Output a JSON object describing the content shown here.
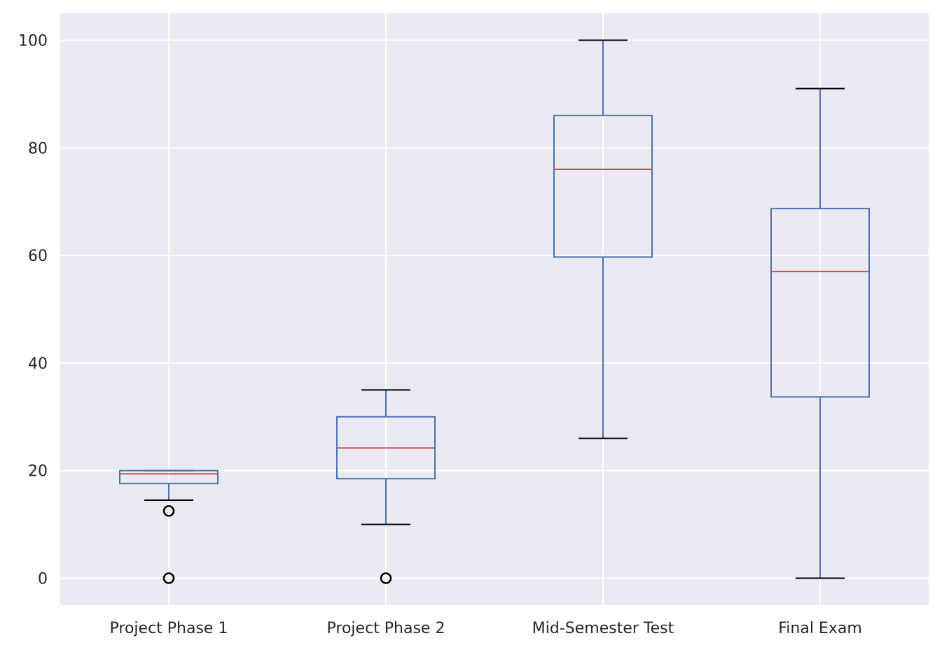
{
  "chart_data": {
    "type": "boxplot",
    "title": "",
    "xlabel": "",
    "ylabel": "",
    "categories": [
      "Project Phase 1",
      "Project Phase 2",
      "Mid-Semester Test",
      "Final Exam"
    ],
    "ylim": [
      -5,
      105
    ],
    "yticks": [
      0,
      20,
      40,
      60,
      80,
      100
    ],
    "grid": true,
    "boxes": [
      {
        "name": "Project Phase 1",
        "whislo": 14.5,
        "q1": 17.6,
        "median": 19.4,
        "q3": 20,
        "whishi": 20,
        "fliers": [
          12.5,
          0
        ]
      },
      {
        "name": "Project Phase 2",
        "whislo": 10,
        "q1": 18.5,
        "median": 24.2,
        "q3": 30,
        "whishi": 35,
        "fliers": [
          0
        ]
      },
      {
        "name": "Mid-Semester Test",
        "whislo": 26,
        "q1": 59.7,
        "median": 76,
        "q3": 86,
        "whishi": 100,
        "fliers": []
      },
      {
        "name": "Final Exam",
        "whislo": 0,
        "q1": 33.7,
        "median": 57,
        "q3": 68.7,
        "whishi": 91,
        "fliers": []
      }
    ],
    "colors": {
      "box": "#4c72b0",
      "median": "#c44e52",
      "cap": "#000000",
      "background": "#eaeaf2",
      "grid": "#ffffff"
    }
  }
}
